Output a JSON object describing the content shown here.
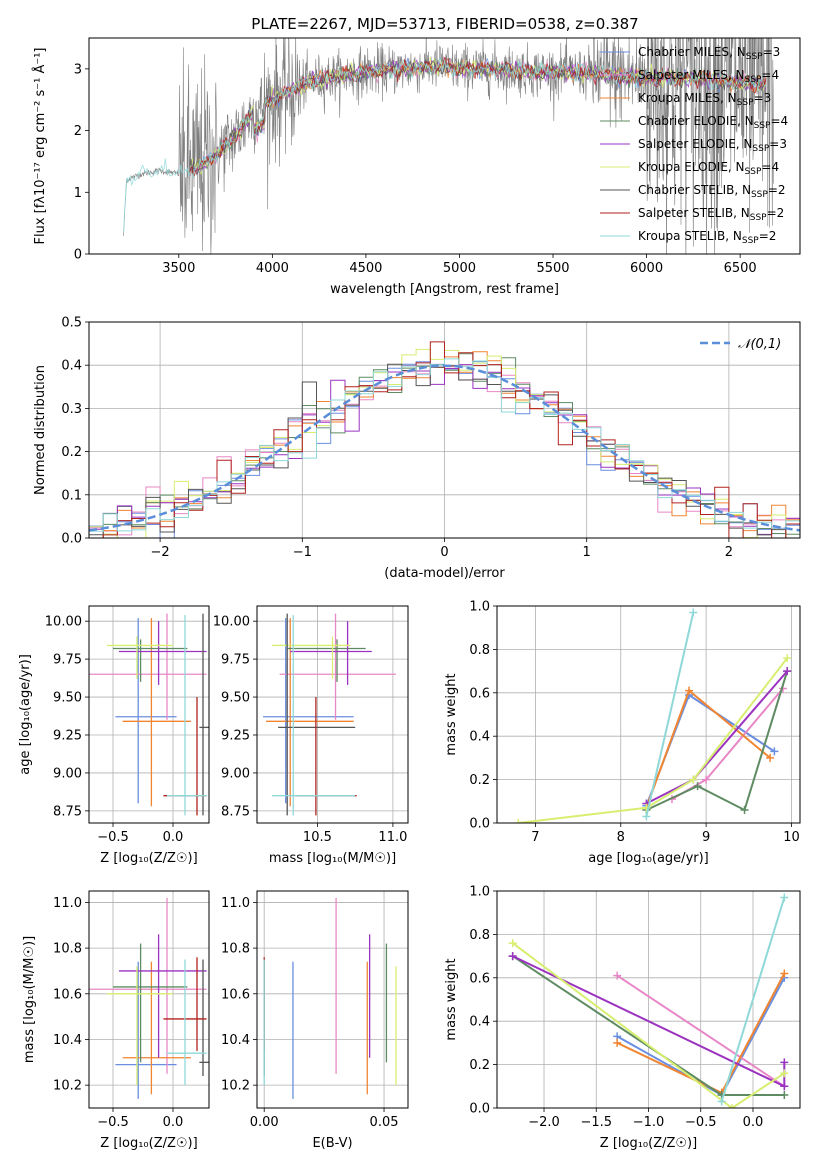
{
  "figure": {
    "title": "PLATE=2267, MJD=53713, FIBERID=0538, z=0.387"
  },
  "colors": {
    "Chabrier MILES": "#6a8ee0",
    "Salpeter MILES": "#e887c6",
    "Kroupa MILES": "#f08532",
    "Chabrier ELODIE": "#5e8b62",
    "Salpeter ELODIE": "#9b33c0",
    "Kroupa ELODIE": "#d7ee70",
    "Chabrier STELIB": "#7f7f7f",
    "Salpeter STELIB": "#b0221e",
    "Kroupa STELIB": "#8fd8d8",
    "gauss": "#5b8ed8"
  },
  "chart_data": [
    {
      "id": "spectrum",
      "type": "line",
      "title": "PLATE=2267, MJD=53713, FIBERID=0538, z=0.387",
      "xlabel": "wavelength [Angstrom, rest frame]",
      "ylabel": "Flux [fλ10⁻¹⁷ erg cm⁻² s⁻¹ Å⁻¹]",
      "xlim": [
        3020,
        6820
      ],
      "ylim": [
        0,
        3.5
      ],
      "xticks": [
        3500,
        4000,
        4500,
        5000,
        5500,
        6000,
        6500
      ],
      "yticks": [
        0,
        1,
        2,
        3
      ],
      "legend": [
        {
          "label": "Chabrier MILES, N",
          "sub": "SSP",
          "tail": "=3",
          "color": "#6a8ee0"
        },
        {
          "label": "Salpeter MILES, N",
          "sub": "SSP",
          "tail": "=4",
          "color": "#e887c6"
        },
        {
          "label": "Kroupa MILES, N",
          "sub": "SSP",
          "tail": "=3",
          "color": "#f08532"
        },
        {
          "label": "Chabrier ELODIE, N",
          "sub": "SSP",
          "tail": "=4",
          "color": "#5e8b62"
        },
        {
          "label": "Salpeter ELODIE, N",
          "sub": "SSP",
          "tail": "=3",
          "color": "#9b33c0"
        },
        {
          "label": "Kroupa ELODIE, N",
          "sub": "SSP",
          "tail": "=4",
          "color": "#d7ee70"
        },
        {
          "label": "Chabrier STELIB, N",
          "sub": "SSP",
          "tail": "=2",
          "color": "#555555"
        },
        {
          "label": "Salpeter STELIB, N",
          "sub": "SSP",
          "tail": "=2",
          "color": "#b0221e"
        },
        {
          "label": "Kroupa STELIB, N",
          "sub": "SSP",
          "tail": "=2",
          "color": "#8fd8d8"
        }
      ],
      "continuum": [
        [
          3200,
          0.0
        ],
        [
          3220,
          1.2
        ],
        [
          3300,
          1.3
        ],
        [
          3400,
          1.35
        ],
        [
          3500,
          1.3
        ],
        [
          3600,
          1.4
        ],
        [
          3700,
          1.6
        ],
        [
          3800,
          1.9
        ],
        [
          3900,
          2.3
        ],
        [
          4000,
          2.5
        ],
        [
          4100,
          2.65
        ],
        [
          4200,
          2.8
        ],
        [
          4300,
          2.85
        ],
        [
          4400,
          2.9
        ],
        [
          4500,
          2.95
        ],
        [
          4700,
          3.0
        ],
        [
          4900,
          3.05
        ],
        [
          5000,
          3.0
        ],
        [
          5200,
          3.0
        ],
        [
          5400,
          2.95
        ],
        [
          5600,
          2.95
        ],
        [
          5800,
          2.9
        ],
        [
          6000,
          2.85
        ],
        [
          6200,
          2.85
        ],
        [
          6400,
          2.8
        ],
        [
          6600,
          2.75
        ]
      ]
    },
    {
      "id": "histogram",
      "type": "step",
      "xlabel": "(data-model)/error",
      "ylabel": "Normed distribution",
      "xlim": [
        -2.5,
        2.5
      ],
      "ylim": [
        0,
        0.5
      ],
      "xticks": [
        -2,
        -1,
        0,
        1,
        2
      ],
      "yticks": [
        0.0,
        0.1,
        0.2,
        0.3,
        0.4,
        0.5
      ],
      "legend": "𝒩(0,1)",
      "bin_width": 0.1
    },
    {
      "id": "age_vs_Z",
      "type": "errorbar",
      "xlabel": "Z [log₁₀(Z/Z☉)]",
      "ylabel": "age [log₁₀(age/yr)]",
      "xlim": [
        -0.7,
        0.3
      ],
      "ylim": [
        8.67,
        10.1
      ],
      "xticks": [
        -0.5,
        0.0
      ],
      "yticks": [
        8.75,
        9.0,
        9.25,
        9.5,
        9.75,
        10.0
      ]
    },
    {
      "id": "age_vs_mass",
      "type": "errorbar",
      "xlabel": "mass [log₁₀(M/M☉)]",
      "xlim": [
        10.1,
        11.1
      ],
      "ylim": [
        8.67,
        10.1
      ],
      "xticks": [
        10.5,
        11.0
      ],
      "yticks": [
        8.75,
        9.0,
        9.25,
        9.5,
        9.75,
        10.0
      ]
    },
    {
      "id": "weight_vs_age",
      "type": "line",
      "xlabel": "age [log₁₀(age/yr)]",
      "ylabel": "mass weight",
      "xlim": [
        6.55,
        10.1
      ],
      "ylim": [
        0,
        1.0
      ],
      "xticks": [
        7,
        8,
        9,
        10
      ],
      "yticks": [
        0.0,
        0.2,
        0.4,
        0.6,
        0.8,
        1.0
      ]
    },
    {
      "id": "mass_vs_Z",
      "type": "errorbar",
      "xlabel": "Z [log₁₀(Z/Z☉)]",
      "ylabel": "mass [log₁₀(M/M☉)]",
      "xlim": [
        -0.7,
        0.3
      ],
      "ylim": [
        10.1,
        11.05
      ],
      "xticks": [
        -0.5,
        0.0
      ],
      "yticks": [
        10.2,
        10.4,
        10.6,
        10.8,
        11.0
      ]
    },
    {
      "id": "mass_vs_ebv",
      "type": "errorbar",
      "xlabel": "E(B-V)",
      "xlim": [
        -0.003,
        0.06
      ],
      "ylim": [
        10.1,
        11.05
      ],
      "xticks": [
        0.0,
        0.05
      ],
      "yticks": [
        10.2,
        10.4,
        10.6,
        10.8,
        11.0
      ]
    },
    {
      "id": "weight_vs_Z",
      "type": "line",
      "xlabel": "Z [log₁₀(Z/Z☉)]",
      "ylabel": "mass weight",
      "xlim": [
        -2.45,
        0.45
      ],
      "ylim": [
        0,
        1.0
      ],
      "xticks": [
        -2.0,
        -1.5,
        -1.0,
        -0.5,
        0.0
      ],
      "yticks": [
        0.0,
        0.2,
        0.4,
        0.6,
        0.8,
        1.0
      ]
    }
  ],
  "models": [
    {
      "name": "Chabrier MILES",
      "color": "#6a8ee0",
      "Z": -0.29,
      "Zerr": [
        -0.48,
        0.03
      ],
      "age": 9.37,
      "ageErr": [
        8.8,
        10.02
      ],
      "mass": 10.29,
      "massErr": [
        10.14,
        10.74
      ],
      "ebv": 0.012,
      "wAge": [
        [
          8.3,
          0.08
        ],
        [
          8.8,
          0.59
        ],
        [
          9.8,
          0.33
        ]
      ],
      "wZ": [
        [
          -1.3,
          0.33
        ],
        [
          -0.3,
          0.06
        ],
        [
          0.3,
          0.6
        ]
      ]
    },
    {
      "name": "Salpeter MILES",
      "color": "#e887c6",
      "Z": -0.05,
      "Zerr": [
        -0.7,
        0.28
      ],
      "age": 9.65,
      "ageErr": [
        9.35,
        10.05
      ],
      "mass": 10.62,
      "massErr": [
        10.25,
        11.02
      ],
      "ebv": 0.03,
      "wAge": [
        [
          8.6,
          0.11
        ],
        [
          9.0,
          0.2
        ],
        [
          9.9,
          0.62
        ]
      ],
      "wZ": [
        [
          -1.3,
          0.61
        ],
        [
          0.3,
          0.1
        ]
      ]
    },
    {
      "name": "Kroupa MILES",
      "color": "#f08532",
      "Z": -0.18,
      "Zerr": [
        -0.42,
        0.15
      ],
      "age": 9.34,
      "ageErr": [
        8.78,
        10.02
      ],
      "mass": 10.32,
      "massErr": [
        10.16,
        10.74
      ],
      "ebv": 0.043,
      "wAge": [
        [
          8.3,
          0.07
        ],
        [
          8.8,
          0.61
        ],
        [
          9.75,
          0.3
        ]
      ],
      "wZ": [
        [
          -1.3,
          0.3
        ],
        [
          -0.3,
          0.07
        ],
        [
          0.3,
          0.62
        ]
      ]
    },
    {
      "name": "Chabrier ELODIE",
      "color": "#5e8b62",
      "Z": -0.27,
      "Zerr": [
        -0.5,
        0.12
      ],
      "age": 9.82,
      "ageErr": [
        9.6,
        9.88
      ],
      "mass": 10.63,
      "massErr": [
        10.3,
        10.82
      ],
      "ebv": 0.051,
      "wAge": [
        [
          8.3,
          0.06
        ],
        [
          8.9,
          0.17
        ],
        [
          9.45,
          0.06
        ],
        [
          9.95,
          0.7
        ]
      ],
      "wZ": [
        [
          -2.3,
          0.7
        ],
        [
          -0.3,
          0.06
        ],
        [
          0.3,
          0.06
        ]
      ]
    },
    {
      "name": "Salpeter ELODIE",
      "color": "#9b33c0",
      "Z": -0.12,
      "Zerr": [
        -0.45,
        0.28
      ],
      "age": 9.8,
      "ageErr": [
        9.58,
        10.0
      ],
      "mass": 10.7,
      "massErr": [
        10.32,
        10.86
      ],
      "ebv": 0.044,
      "wAge": [
        [
          8.3,
          0.09
        ],
        [
          8.85,
          0.2
        ],
        [
          9.95,
          0.7
        ]
      ],
      "wZ": [
        [
          -2.3,
          0.7
        ],
        [
          0.3,
          0.1
        ],
        [
          0.3,
          0.21
        ]
      ]
    },
    {
      "name": "Kroupa ELODIE",
      "color": "#d7ee70",
      "Z": -0.3,
      "Zerr": [
        -0.55,
        0.0
      ],
      "age": 9.84,
      "ageErr": [
        9.62,
        9.9
      ],
      "mass": 10.6,
      "massErr": [
        10.2,
        10.72
      ],
      "ebv": 0.055,
      "wAge": [
        [
          6.8,
          0.0
        ],
        [
          8.3,
          0.07
        ],
        [
          8.85,
          0.2
        ],
        [
          9.95,
          0.76
        ]
      ],
      "wZ": [
        [
          -2.3,
          0.76
        ],
        [
          -0.2,
          0.0
        ],
        [
          0.3,
          0.16
        ]
      ]
    },
    {
      "name": "Chabrier STELIB",
      "color": "#555555",
      "Z": 0.25,
      "Zerr": [
        0.22,
        0.3
      ],
      "age": 9.3,
      "ageErr": [
        8.72,
        10.05
      ],
      "mass": 10.3,
      "massErr": [
        10.24,
        10.75
      ],
      "ebv": 0.0,
      "wAge": [],
      "wZ": []
    },
    {
      "name": "Salpeter STELIB",
      "color": "#b0221e",
      "Z": 0.2,
      "Zerr": [
        -0.08,
        0.28
      ],
      "age": 8.85,
      "ageErr": [
        8.72,
        9.5
      ],
      "mass": 10.49,
      "massErr": [
        10.35,
        10.76
      ],
      "ebv": 0.0,
      "wAge": [],
      "wZ": []
    },
    {
      "name": "Kroupa STELIB",
      "color": "#8fd8d8",
      "Z": 0.1,
      "Zerr": [
        -0.05,
        0.28
      ],
      "age": 8.85,
      "ageErr": [
        8.72,
        10.04
      ],
      "mass": 10.34,
      "massErr": [
        10.2,
        10.75
      ],
      "ebv": 0.0,
      "wAge": [
        [
          8.3,
          0.03
        ],
        [
          8.85,
          0.97
        ]
      ],
      "wZ": [
        [
          -0.3,
          0.03
        ],
        [
          0.3,
          0.97
        ]
      ]
    }
  ]
}
